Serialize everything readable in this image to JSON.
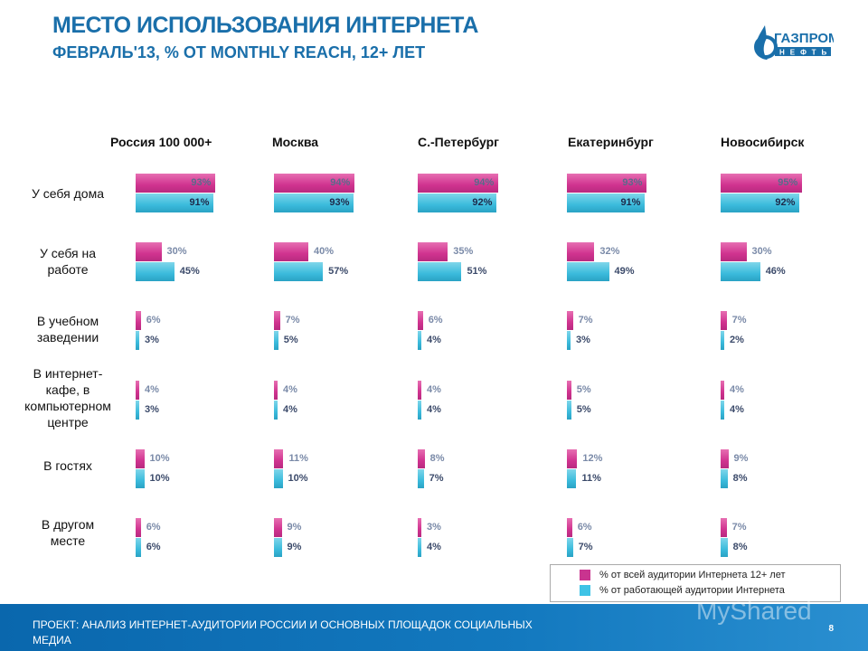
{
  "header": {
    "title": "МЕСТО ИСПОЛЬЗОВАНИЯ ИНТЕРНЕТА",
    "subtitle": "ФЕВРАЛЬ'13, % ОТ MONTHLY REACH, 12+ ЛЕТ",
    "logo_text": "ГАЗПРОМ НЕФТЬ"
  },
  "chart_data": {
    "type": "bar",
    "orientation": "horizontal",
    "categories": [
      "У себя дома",
      "У себя на работе",
      "В учебном заведении",
      "В интернет-кафе, в компьютерном центре",
      "В гостях",
      "В другом месте"
    ],
    "panels": [
      {
        "title": "Россия 100 000+",
        "series": [
          {
            "name": "% от всей аудитории Интернета 12+ лет",
            "values": [
              93,
              30,
              6,
              4,
              10,
              6
            ]
          },
          {
            "name": "% от работающей аудитории Интернета",
            "values": [
              91,
              45,
              3,
              3,
              10,
              6
            ]
          }
        ]
      },
      {
        "title": "Москва",
        "series": [
          {
            "name": "% от всей аудитории Интернета 12+ лет",
            "values": [
              94,
              40,
              7,
              4,
              11,
              9
            ]
          },
          {
            "name": "% от работающей аудитории Интернета",
            "values": [
              93,
              57,
              5,
              4,
              10,
              9
            ]
          }
        ]
      },
      {
        "title": "С.-Петербург",
        "series": [
          {
            "name": "% от всей аудитории Интернета 12+ лет",
            "values": [
              94,
              35,
              6,
              4,
              8,
              3
            ]
          },
          {
            "name": "% от работающей аудитории Интернета",
            "values": [
              92,
              51,
              4,
              4,
              7,
              4
            ]
          }
        ]
      },
      {
        "title": "Екатеринбург",
        "series": [
          {
            "name": "% от всей аудитории Интернета 12+ лет",
            "values": [
              93,
              32,
              7,
              5,
              12,
              6
            ]
          },
          {
            "name": "% от работающей аудитории Интернета",
            "values": [
              91,
              49,
              3,
              5,
              11,
              7
            ]
          }
        ]
      },
      {
        "title": "Новосибирск",
        "series": [
          {
            "name": "% от всей аудитории Интернета 12+ лет",
            "values": [
              95,
              30,
              7,
              4,
              9,
              7
            ]
          },
          {
            "name": "% от работающей аудитории Интернета",
            "values": [
              92,
              46,
              2,
              4,
              8,
              8
            ]
          }
        ]
      }
    ],
    "colors": [
      "#d0338f",
      "#3bbbdc"
    ],
    "legend": {
      "position": "bottom-right",
      "items": [
        "% от всей аудитории Интернета 12+ лет",
        "% от работающей аудитории Интернета"
      ]
    },
    "row_labels": [
      "У себя дома",
      "У себя на\nработе",
      "В учебном\nзаведении",
      "В интернет-\nкафе, в\nкомпьютерном\nцентре",
      "В гостях",
      "В другом\nместе"
    ]
  },
  "footer": {
    "text": "ПРОЕКТ: АНАЛИЗ ИНТЕРНЕТ-АУДИТОРИИ РОССИИ И ОСНОВНЫХ ПЛОЩАДОК СОЦИАЛЬНЫХ МЕДИА",
    "page": "8",
    "watermark": "MyShared"
  }
}
